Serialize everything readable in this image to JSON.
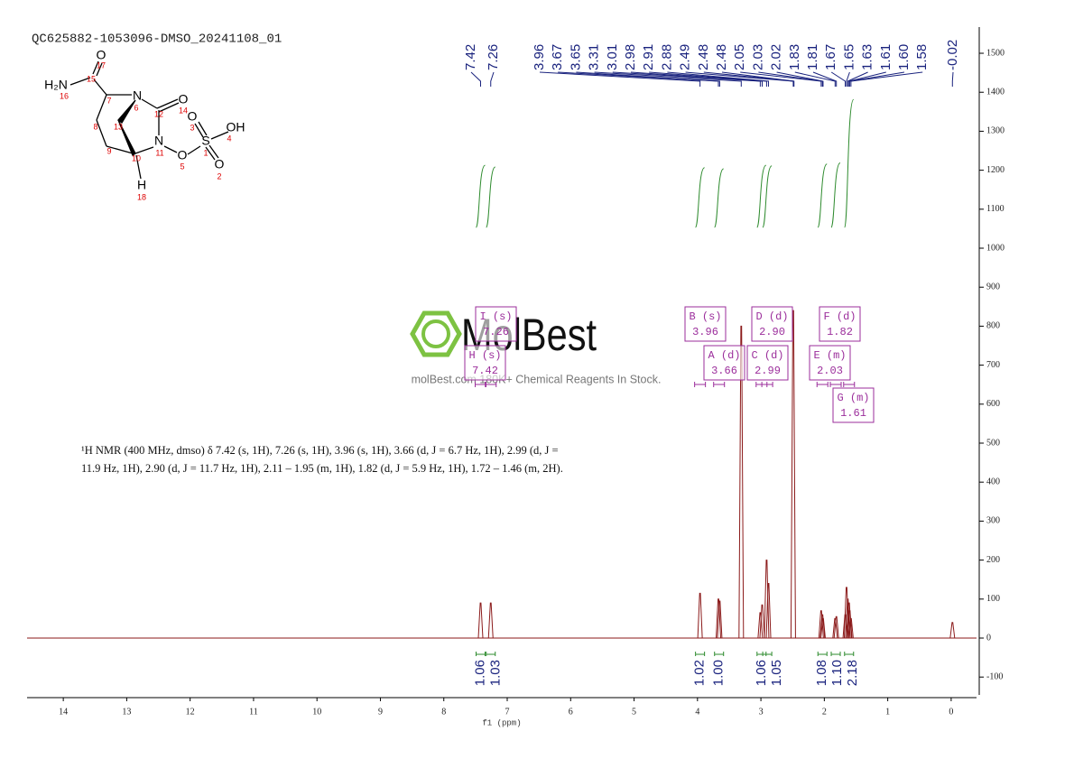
{
  "chart_data": {
    "type": "nmr",
    "title": "QC625882-1053096-DMSO_20241108_01",
    "xlabel": "f1 (ppm)",
    "xlim": [
      14.5,
      -0.4
    ],
    "xticks": [
      14,
      13,
      12,
      11,
      10,
      9,
      8,
      7,
      6,
      5,
      4,
      3,
      2,
      1,
      0
    ],
    "ylim": [
      -150,
      1560
    ],
    "yticks": [
      -100,
      0,
      100,
      200,
      300,
      400,
      500,
      600,
      700,
      800,
      900,
      1000,
      1100,
      1200,
      1300,
      1400,
      1500
    ],
    "peaks": {
      "color": "#8b1a1a",
      "x": [
        7.42,
        7.26,
        3.96,
        3.67,
        3.65,
        3.31,
        3.01,
        2.98,
        2.91,
        2.88,
        2.49,
        2.05,
        2.03,
        2.02,
        1.83,
        1.81,
        1.67,
        1.65,
        1.63,
        1.61,
        1.6,
        1.58,
        -0.02
      ],
      "values": [
        90,
        90,
        115,
        100,
        95,
        800,
        65,
        85,
        200,
        140,
        840,
        70,
        60,
        50,
        50,
        55,
        60,
        130,
        100,
        90,
        70,
        50,
        40
      ]
    },
    "peak_labels": [
      7.42,
      7.26,
      3.96,
      3.67,
      3.65,
      3.31,
      3.01,
      2.98,
      2.91,
      2.88,
      2.49,
      2.48,
      2.48,
      2.05,
      2.03,
      2.02,
      1.83,
      1.81,
      1.67,
      1.65,
      1.63,
      1.61,
      {
        "value": 1.6,
        "label": "1.60"
      },
      1.58,
      -0.02
    ],
    "integrals": {
      "x": [
        7.42,
        7.26,
        3.96,
        3.66,
        2.99,
        2.9,
        2.03,
        1.82,
        1.61
      ],
      "values": [
        1.06,
        1.03,
        1.02,
        1.0,
        1.06,
        1.05,
        1.08,
        1.1,
        2.18
      ],
      "value_labels": [
        "1.06",
        "1.03",
        "1.02",
        "1.00",
        "1.06",
        "1.05",
        "1.08",
        "1.10",
        "2.18"
      ]
    },
    "multiplets": [
      {
        "name": "H (s)",
        "shift": 7.42
      },
      {
        "name": "I (s)",
        "shift": 7.26
      },
      {
        "name": "B (s)",
        "shift": 3.96
      },
      {
        "name": "A (d)",
        "shift": 3.66
      },
      {
        "name": "C (d)",
        "shift": 2.99
      },
      {
        "name": "D (d)",
        "shift": {
          "value": 2.9,
          "label": "2.90"
        }
      },
      {
        "name": "E (m)",
        "shift": 2.03
      },
      {
        "name": "F (d)",
        "shift": 1.82
      },
      {
        "name": "G (m)",
        "shift": 1.61
      }
    ],
    "description": "¹H NMR (400 MHz, dmso) δ 7.42 (s, 1H), 7.26 (s, 1H), 3.96 (s, 1H), 3.66 (d, J = 6.7 Hz, 1H), 2.99 (d, J = 11.9 Hz, 1H), 2.90 (d, J = 11.7 Hz, 1H), 2.11 – 1.95 (m, 1H), 1.82 (d, J = 5.9 Hz, 1H), 1.72 – 1.46 (m, 2H).",
    "watermark": {
      "brand": "MolBest",
      "tagline": "molBest.com 180K+ Chemical Reagents In Stock."
    }
  },
  "structure": {
    "atoms": [
      {
        "symbol": "O",
        "number": 17
      },
      {
        "number": 15
      },
      {
        "symbol": "H₂N",
        "number": 16
      },
      {
        "number": 7
      },
      {
        "symbol": "N",
        "number": 6
      },
      {
        "number": 12
      },
      {
        "symbol": "O",
        "number": 14
      },
      {
        "number": 13
      },
      {
        "number": 8
      },
      {
        "symbol": "N",
        "number": 11
      },
      {
        "symbol": "O",
        "number": 3
      },
      {
        "symbol": "S",
        "number": 1
      },
      {
        "symbol": "OH",
        "number": 4
      },
      {
        "symbol": "O",
        "number": 5
      },
      {
        "symbol": "O",
        "number": 2
      },
      {
        "number": 9
      },
      {
        "number": 10
      },
      {
        "symbol": "H",
        "number": 18
      }
    ]
  }
}
